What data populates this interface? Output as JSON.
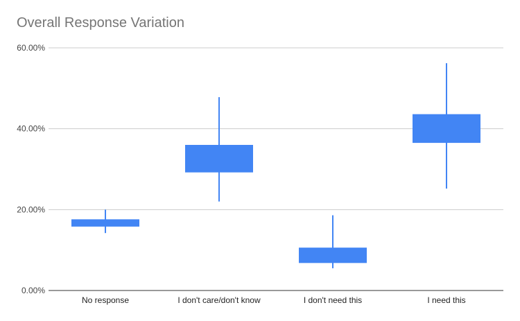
{
  "title": "Overall Response Variation",
  "colors": {
    "series": "#4285f4",
    "grid": "#cccccc",
    "axis": "#333333"
  },
  "chart_data": {
    "type": "candlestick",
    "title": "Overall Response Variation",
    "xlabel": "",
    "ylabel": "",
    "ylim": [
      0,
      0.6
    ],
    "y_ticks": [
      0,
      0.2,
      0.4,
      0.6
    ],
    "y_tick_labels": [
      "0.00%",
      "20.00%",
      "40.00%",
      "60.00%"
    ],
    "grid": true,
    "categories": [
      "No response",
      "I don't care/don't know",
      "I don't need this",
      "I need this"
    ],
    "low": [
      0.142,
      0.22,
      0.055,
      0.252
    ],
    "open": [
      0.158,
      0.292,
      0.068,
      0.365
    ],
    "close": [
      0.176,
      0.36,
      0.106,
      0.436
    ],
    "high": [
      0.2,
      0.478,
      0.186,
      0.562
    ]
  }
}
